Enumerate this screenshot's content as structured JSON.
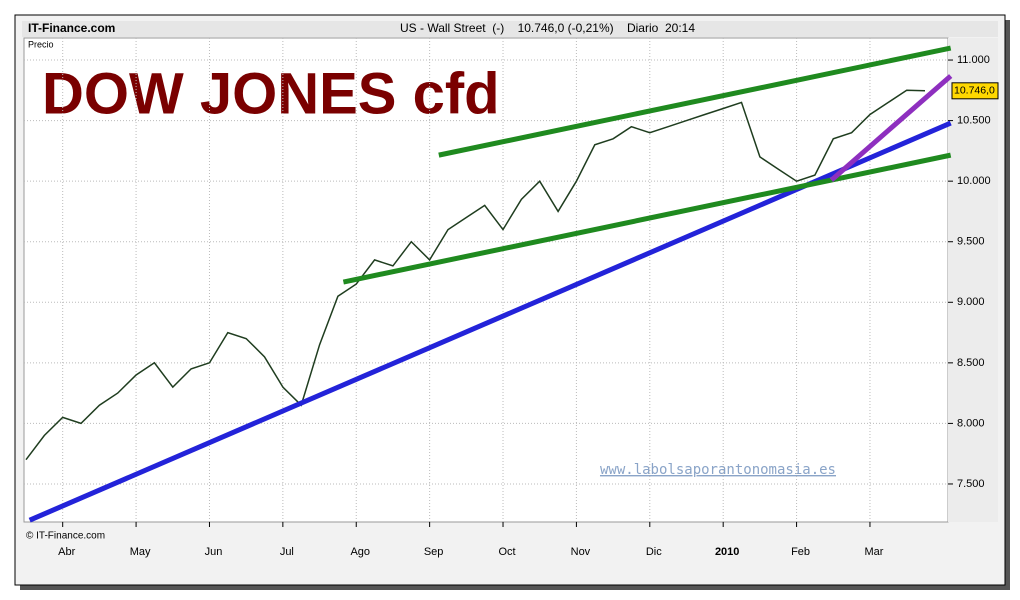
{
  "header": {
    "site": "IT-Finance.com",
    "quote": "US - Wall Street  (-)    10.746,0 (-0,21%)    Diario  20:14"
  },
  "chart_data": {
    "type": "line",
    "title": "DOW JONES cfd",
    "y_label": "Precio",
    "copyright": "© IT-Finance.com",
    "watermark": "www.labolsaporantonomasia.es",
    "categories": [
      null,
      null,
      "Abr",
      null,
      null,
      null,
      "May",
      null,
      null,
      null,
      "Jun",
      null,
      null,
      null,
      "Jul",
      null,
      null,
      null,
      "Ago",
      null,
      null,
      null,
      "Sep",
      null,
      null,
      null,
      "Oct",
      null,
      null,
      null,
      "Nov",
      null,
      null,
      null,
      "Dic",
      null,
      null,
      null,
      "2010",
      null,
      null,
      null,
      "Feb",
      null,
      null,
      null,
      "Mar",
      null,
      null,
      null
    ],
    "series": [
      {
        "name": "Precio",
        "color": "#1f3d1f",
        "values": [
          7700,
          7900,
          8050,
          8000,
          8150,
          8250,
          8400,
          8500,
          8300,
          8450,
          8500,
          8750,
          8700,
          8550,
          8300,
          8150,
          8650,
          9050,
          9150,
          9350,
          9300,
          9500,
          9350,
          9600,
          9700,
          9800,
          9600,
          9850,
          10000,
          9750,
          10000,
          10300,
          10350,
          10450,
          10400,
          10450,
          10500,
          10550,
          10600,
          10650,
          10200,
          10100,
          10000,
          10050,
          10350,
          10400,
          10550,
          10650,
          10750,
          10746
        ],
        "last_label": "10.746,0"
      }
    ],
    "trendlines": [
      {
        "color": "#2323d9",
        "x": [
          0.2,
          50.4
        ],
        "y": [
          7201,
          10480
        ]
      },
      {
        "color": "#1f8a1f",
        "x": [
          22.5,
          50.4
        ],
        "y": [
          10215,
          11099
        ]
      },
      {
        "color": "#1f8a1f",
        "x": [
          17.3,
          50.4
        ],
        "y": [
          9167,
          10215
        ]
      },
      {
        "color": "#8e2fbf",
        "x": [
          43.9,
          50.4
        ],
        "y": [
          10009,
          10868
        ]
      }
    ],
    "ylim": [
      7186,
      11182
    ],
    "yticks": [
      {
        "value": 7500,
        "label": "7.500"
      },
      {
        "value": 8000,
        "label": "8.000"
      },
      {
        "value": 8500,
        "label": "8.500"
      },
      {
        "value": 9000,
        "label": "9.000"
      },
      {
        "value": 9500,
        "label": "9.500"
      },
      {
        "value": 10000,
        "label": "10.000"
      },
      {
        "value": 10500,
        "label": "10.500"
      },
      {
        "value": 11000,
        "label": "11.000"
      }
    ],
    "grid": true
  }
}
